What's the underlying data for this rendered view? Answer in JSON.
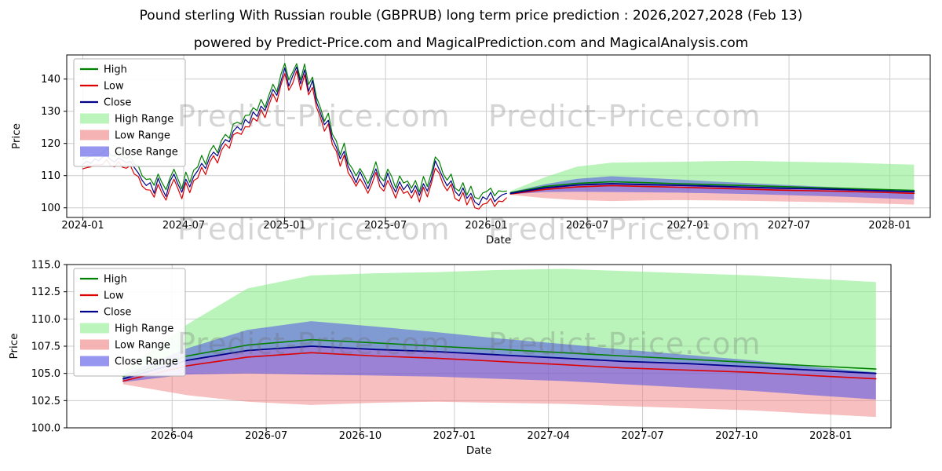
{
  "title": "Pound sterling With Russian rouble (GBPRUB) long term price prediction : 2026,2027,2028 (Feb 13)",
  "subtitle": "powered by Predict-Price.com and MagicalPrediction.com and MagicalAnalysis.com",
  "watermark": {
    "text": "Predict-Price.com",
    "color": "#d0d0d0"
  },
  "colors": {
    "high_line": "#008000",
    "low_line": "#dd0000",
    "close_line": "#00008b",
    "high_range_fill": "#90ee90",
    "low_range_fill": "#f08080",
    "close_range_fill": "#5050e6",
    "grid": "#cccccc",
    "spine": "#000000"
  },
  "legend": {
    "items": [
      {
        "label": "High",
        "swatch": "line",
        "color": "#008000"
      },
      {
        "label": "Low",
        "swatch": "line",
        "color": "#dd0000"
      },
      {
        "label": "Close",
        "swatch": "line",
        "color": "#00008b"
      },
      {
        "label": "High Range",
        "swatch": "patch",
        "color": "#90ee90"
      },
      {
        "label": "Low Range",
        "swatch": "patch",
        "color": "#f08080"
      },
      {
        "label": "Close Range",
        "swatch": "patch",
        "color": "#5050e6"
      }
    ]
  },
  "chart_data": [
    {
      "type": "line",
      "title": "",
      "xlabel": "Date",
      "ylabel": "Price",
      "xlim": [
        2023.92,
        2028.2
      ],
      "ylim": [
        97.0,
        147.5
      ],
      "grid": true,
      "legend_position": "upper left",
      "xticks": {
        "values": [
          2024.0,
          2024.5,
          2025.0,
          2025.5,
          2026.0,
          2026.5,
          2027.0,
          2027.5,
          2028.0
        ],
        "labels": [
          "2024-01",
          "2024-07",
          "2025-01",
          "2025-07",
          "2026-01",
          "2026-07",
          "2027-01",
          "2027-07",
          "2028-01"
        ]
      },
      "yticks": {
        "values": [
          100,
          110,
          120,
          130,
          140
        ],
        "labels": [
          "100",
          "110",
          "120",
          "130",
          "140"
        ]
      },
      "history": {
        "x_start": 2024.0,
        "x_end": 2026.1,
        "high": [
          115.1,
          115.6,
          116.0,
          116.6,
          116.5,
          117.0,
          118.7,
          116.3,
          116.0,
          117.6,
          115.8,
          115.4,
          116.1,
          113.6,
          113.0,
          109.9,
          108.8,
          109.0,
          107.0,
          110.5,
          107.8,
          105.6,
          109.2,
          112.0,
          109.0,
          105.9,
          111.1,
          107.9,
          111.7,
          112.7,
          116.3,
          113.5,
          117.4,
          119.4,
          117.1,
          120.9,
          122.8,
          121.6,
          126.0,
          126.6,
          126.0,
          128.7,
          128.8,
          131.1,
          130.2,
          133.7,
          131.2,
          135.0,
          138.4,
          136.0,
          141.4,
          144.9,
          139.7,
          142.2,
          144.8,
          139.8,
          144.7,
          138.3,
          140.6,
          134.3,
          131.1,
          126.9,
          129.4,
          122.9,
          120.8,
          116.4,
          120.1,
          114.1,
          112.3,
          109.9,
          112.2,
          110.1,
          107.5,
          110.5,
          114.3,
          109.7,
          108.4,
          112.0,
          109.7,
          106.2,
          109.9,
          107.7,
          108.3,
          106.1,
          108.5,
          104.9,
          109.7,
          106.6,
          110.7,
          115.8,
          114.4,
          110.5,
          108.6,
          110.5,
          106.1,
          105.2,
          107.8,
          104.0,
          106.7,
          103.2,
          102.8,
          104.6,
          105.1,
          106.1,
          103.7,
          105.3,
          105.1,
          105.2
        ],
        "low": [
          112.1,
          112.5,
          112.7,
          113.4,
          113.3,
          113.5,
          115.0,
          113.1,
          112.7,
          114.4,
          112.6,
          112.3,
          113.1,
          110.5,
          109.7,
          106.7,
          105.6,
          105.5,
          103.3,
          107.3,
          104.5,
          102.4,
          106.0,
          108.9,
          106.0,
          102.8,
          107.8,
          104.7,
          108.5,
          109.2,
          112.6,
          110.3,
          114.1,
          116.2,
          113.9,
          117.8,
          119.8,
          118.5,
          122.7,
          123.4,
          122.8,
          125.2,
          125.1,
          127.9,
          126.9,
          130.5,
          128.0,
          131.9,
          135.4,
          132.9,
          138.1,
          141.7,
          136.5,
          138.7,
          142.6,
          136.6,
          141.4,
          135.1,
          137.4,
          131.2,
          128.1,
          123.8,
          126.1,
          119.7,
          117.6,
          112.9,
          116.4,
          110.9,
          109.0,
          106.7,
          109.0,
          107.0,
          104.5,
          107.4,
          111.0,
          106.5,
          105.2,
          108.5,
          106.0,
          103.0,
          106.6,
          104.5,
          105.1,
          103.0,
          105.5,
          101.8,
          106.4,
          103.4,
          107.5,
          112.3,
          110.7,
          107.3,
          105.3,
          107.3,
          102.9,
          102.1,
          104.8,
          100.9,
          103.4,
          100.0,
          99.6,
          101.1,
          101.4,
          102.9,
          100.4,
          102.1,
          101.9,
          103.1
        ],
        "close": [
          113.5,
          114.5,
          113.8,
          115.2,
          114.6,
          115.8,
          116.2,
          115.0,
          114.2,
          115.5,
          114.8,
          113.9,
          114.5,
          112.5,
          110.8,
          108.5,
          106.9,
          107.8,
          104.5,
          109.2,
          106.0,
          103.5,
          108.2,
          110.5,
          107.4,
          104.8,
          108.9,
          106.5,
          109.8,
          111.5,
          113.8,
          112.2,
          115.6,
          117.3,
          116.1,
          119.4,
          121.2,
          120.5,
          123.8,
          125.2,
          124.1,
          127.5,
          126.3,
          129.8,
          128.4,
          131.6,
          130.2,
          133.5,
          136.8,
          134.9,
          139.2,
          143.5,
          137.8,
          141.0,
          143.8,
          138.5,
          142.9,
          136.2,
          139.6,
          132.8,
          129.5,
          125.8,
          127.2,
          121.5,
          118.9,
          115.2,
          117.6,
          112.8,
          110.5,
          107.8,
          111.2,
          108.6,
          105.9,
          109.4,
          112.1,
          108.3,
          106.5,
          110.8,
          107.2,
          104.9,
          108.1,
          105.6,
          107.3,
          104.6,
          106.9,
          103.8,
          107.5,
          105.2,
          108.8,
          114.6,
          111.9,
          109.2,
          106.8,
          108.4,
          105.1,
          103.7,
          106.2,
          102.9,
          104.5,
          101.8,
          100.9,
          103.4,
          102.6,
          104.8,
          101.9,
          103.2,
          104.1,
          104.5
        ]
      },
      "forecast": {
        "x": [
          2026.12,
          2026.29,
          2026.45,
          2026.62,
          2026.79,
          2026.95,
          2027.12,
          2027.29,
          2027.45,
          2027.62,
          2027.79,
          2027.95,
          2028.12
        ],
        "high": [
          104.7,
          106.6,
          107.6,
          108.1,
          107.8,
          107.5,
          107.2,
          106.9,
          106.6,
          106.3,
          106.0,
          105.7,
          105.4
        ],
        "low": [
          104.3,
          105.7,
          106.5,
          106.9,
          106.6,
          106.4,
          106.1,
          105.8,
          105.5,
          105.3,
          105.1,
          104.8,
          104.5
        ],
        "close": [
          104.5,
          106.2,
          107.1,
          107.5,
          107.2,
          107.0,
          106.7,
          106.4,
          106.1,
          105.9,
          105.6,
          105.3,
          105.0
        ],
        "high_range_top": [
          105.2,
          109.5,
          112.8,
          114.0,
          114.2,
          114.3,
          114.5,
          114.6,
          114.4,
          114.2,
          114.0,
          113.7,
          113.4
        ],
        "close_range_top": [
          104.9,
          107.3,
          109.0,
          109.8,
          109.3,
          108.8,
          108.2,
          107.7,
          107.2,
          106.7,
          106.2,
          105.6,
          105.1
        ],
        "close_range_bottom": [
          104.2,
          104.9,
          105.0,
          104.9,
          104.8,
          104.7,
          104.5,
          104.3,
          104.0,
          103.7,
          103.4,
          103.0,
          102.6
        ],
        "low_range_bottom": [
          104.0,
          103.0,
          102.4,
          102.1,
          102.3,
          102.4,
          102.3,
          102.2,
          102.0,
          101.8,
          101.6,
          101.3,
          101.0
        ]
      }
    },
    {
      "type": "line",
      "title": "",
      "xlabel": "Date",
      "ylabel": "Price",
      "xlim": [
        2025.97,
        2028.16
      ],
      "ylim": [
        100.0,
        115.0
      ],
      "grid": true,
      "legend_position": "upper left",
      "xticks": {
        "values": [
          2026.25,
          2026.5,
          2026.75,
          2027.0,
          2027.25,
          2027.5,
          2027.75,
          2028.0
        ],
        "labels": [
          "2026-04",
          "2026-07",
          "2026-10",
          "2027-01",
          "2027-04",
          "2027-07",
          "2027-10",
          "2028-01"
        ]
      },
      "yticks": {
        "values": [
          100.0,
          102.5,
          105.0,
          107.5,
          110.0,
          112.5,
          115.0
        ],
        "labels": [
          "100.0",
          "102.5",
          "105.0",
          "107.5",
          "110.0",
          "112.5",
          "115.0"
        ]
      },
      "forecast": {
        "x": [
          2026.12,
          2026.29,
          2026.45,
          2026.62,
          2026.79,
          2026.95,
          2027.12,
          2027.29,
          2027.45,
          2027.62,
          2027.79,
          2027.95,
          2028.12
        ],
        "high": [
          104.7,
          106.6,
          107.6,
          108.1,
          107.8,
          107.5,
          107.2,
          106.9,
          106.6,
          106.3,
          106.0,
          105.7,
          105.4
        ],
        "low": [
          104.3,
          105.7,
          106.5,
          106.9,
          106.6,
          106.4,
          106.1,
          105.8,
          105.5,
          105.3,
          105.1,
          104.8,
          104.5
        ],
        "close": [
          104.5,
          106.2,
          107.1,
          107.5,
          107.2,
          107.0,
          106.7,
          106.4,
          106.1,
          105.9,
          105.6,
          105.3,
          105.0
        ],
        "high_range_top": [
          105.2,
          109.5,
          112.8,
          114.0,
          114.2,
          114.3,
          114.5,
          114.6,
          114.4,
          114.2,
          114.0,
          113.7,
          113.4
        ],
        "close_range_top": [
          104.9,
          107.3,
          109.0,
          109.8,
          109.3,
          108.8,
          108.2,
          107.7,
          107.2,
          106.7,
          106.2,
          105.6,
          105.1
        ],
        "close_range_bottom": [
          104.2,
          104.9,
          105.0,
          104.9,
          104.8,
          104.7,
          104.5,
          104.3,
          104.0,
          103.7,
          103.4,
          103.0,
          102.6
        ],
        "low_range_bottom": [
          104.0,
          103.0,
          102.4,
          102.1,
          102.3,
          102.4,
          102.3,
          102.2,
          102.0,
          101.8,
          101.6,
          101.3,
          101.0
        ]
      }
    }
  ]
}
